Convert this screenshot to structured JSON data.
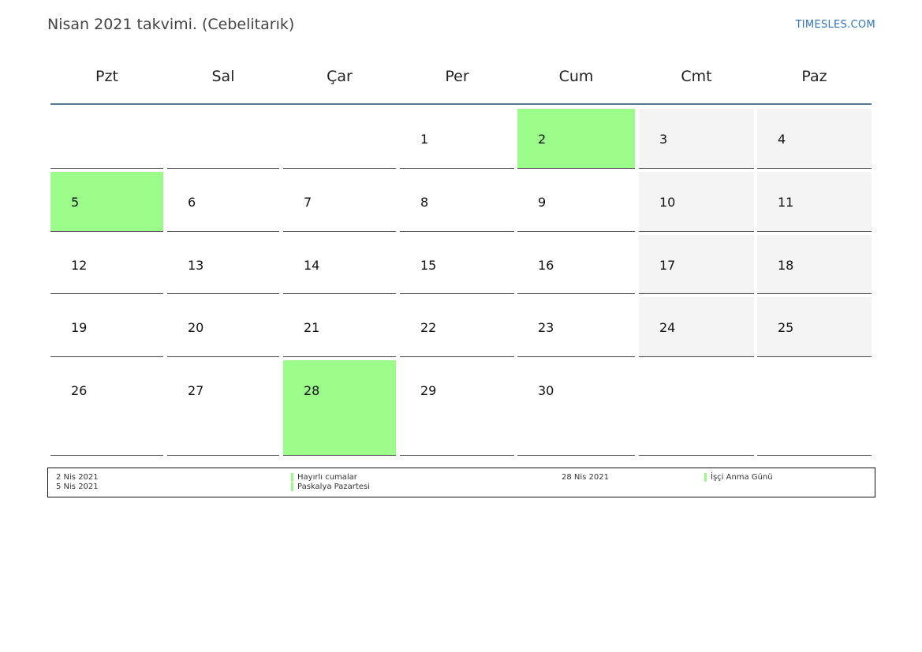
{
  "page": {
    "title": "Nisan 2021 takvimi. (Cebelitarık)",
    "brand": "TIMESLES.COM"
  },
  "colors": {
    "holiday": "#9cfc8a",
    "weekend": "#f4f4f4",
    "header_rule": "#5a7592",
    "brand": "#2f74b5"
  },
  "weekdays": [
    "Pzt",
    "Sal",
    "Çar",
    "Per",
    "Cum",
    "Cmt",
    "Paz"
  ],
  "weeks": [
    [
      {
        "day": "",
        "type": "normal"
      },
      {
        "day": "",
        "type": "normal"
      },
      {
        "day": "",
        "type": "normal"
      },
      {
        "day": "1",
        "type": "normal"
      },
      {
        "day": "2",
        "type": "holiday"
      },
      {
        "day": "3",
        "type": "weekend"
      },
      {
        "day": "4",
        "type": "weekend"
      }
    ],
    [
      {
        "day": "5",
        "type": "holiday"
      },
      {
        "day": "6",
        "type": "normal"
      },
      {
        "day": "7",
        "type": "normal"
      },
      {
        "day": "8",
        "type": "normal"
      },
      {
        "day": "9",
        "type": "normal"
      },
      {
        "day": "10",
        "type": "weekend"
      },
      {
        "day": "11",
        "type": "weekend"
      }
    ],
    [
      {
        "day": "12",
        "type": "normal"
      },
      {
        "day": "13",
        "type": "normal"
      },
      {
        "day": "14",
        "type": "normal"
      },
      {
        "day": "15",
        "type": "normal"
      },
      {
        "day": "16",
        "type": "normal"
      },
      {
        "day": "17",
        "type": "weekend"
      },
      {
        "day": "18",
        "type": "weekend"
      }
    ],
    [
      {
        "day": "19",
        "type": "normal"
      },
      {
        "day": "20",
        "type": "normal"
      },
      {
        "day": "21",
        "type": "normal"
      },
      {
        "day": "22",
        "type": "normal"
      },
      {
        "day": "23",
        "type": "normal"
      },
      {
        "day": "24",
        "type": "weekend"
      },
      {
        "day": "25",
        "type": "weekend"
      }
    ],
    [
      {
        "day": "26",
        "type": "normal"
      },
      {
        "day": "27",
        "type": "normal"
      },
      {
        "day": "28",
        "type": "holiday"
      },
      {
        "day": "29",
        "type": "normal"
      },
      {
        "day": "30",
        "type": "normal"
      },
      {
        "day": "",
        "type": "normal"
      },
      {
        "day": "",
        "type": "normal"
      }
    ]
  ],
  "legend": [
    {
      "date": "2 Nis 2021",
      "name": "Hayırlı cumalar"
    },
    {
      "date": "5 Nis 2021",
      "name": "Paskalya Pazartesi"
    },
    {
      "date": "28 Nis 2021",
      "name": "İşçi Anma Günü"
    }
  ]
}
